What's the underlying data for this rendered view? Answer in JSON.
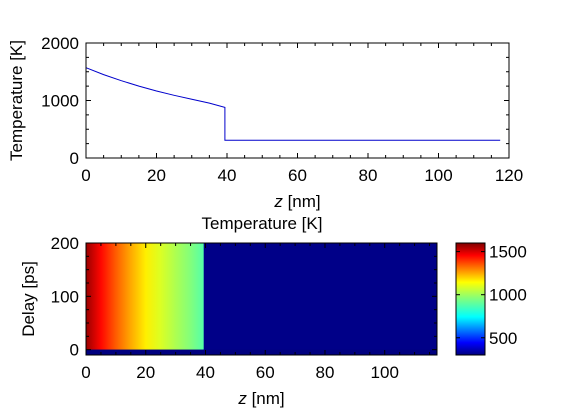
{
  "chart_data": [
    {
      "type": "line",
      "title": "",
      "xlabel_var": "z",
      "xlabel_unit": " [nm]",
      "ylabel": "Temperature [K]",
      "xlim": [
        0,
        120
      ],
      "ylim": [
        0,
        2000
      ],
      "xticks": [
        0,
        20,
        40,
        60,
        80,
        100,
        120
      ],
      "yticks": [
        0,
        1000,
        2000
      ],
      "line_color": "#0000cc",
      "series": [
        {
          "x": [
            0,
            5,
            10,
            15,
            20,
            25,
            30,
            35,
            39.4,
            39.4,
            40,
            40,
            50,
            60,
            70,
            80,
            90,
            100,
            110,
            117.5
          ],
          "y": [
            1570,
            1450,
            1345,
            1250,
            1165,
            1090,
            1020,
            955,
            880,
            310,
            310,
            310,
            310,
            310,
            310,
            310,
            310,
            310,
            310,
            310
          ]
        }
      ]
    },
    {
      "type": "heatmap",
      "title": "Temperature [K]",
      "xlabel_var": "z",
      "xlabel_unit": " [nm]",
      "ylabel": "Delay [ps]",
      "xlim": [
        0,
        117.5
      ],
      "ylim": [
        -10,
        200
      ],
      "xticks": [
        0,
        20,
        40,
        60,
        80,
        100
      ],
      "yticks": [
        0,
        100,
        200
      ],
      "colormap": "jet",
      "clim": [
        300,
        1600
      ],
      "colorbar_ticks": [
        500,
        1000,
        1500
      ],
      "profile_z": [
        0,
        5,
        10,
        15,
        20,
        25,
        30,
        35,
        39.4,
        40,
        117.5
      ],
      "profile_T_after_zero_delay": [
        1570,
        1450,
        1345,
        1250,
        1165,
        1090,
        1020,
        955,
        880,
        310,
        310
      ],
      "T_before_zero_delay": 300
    }
  ]
}
